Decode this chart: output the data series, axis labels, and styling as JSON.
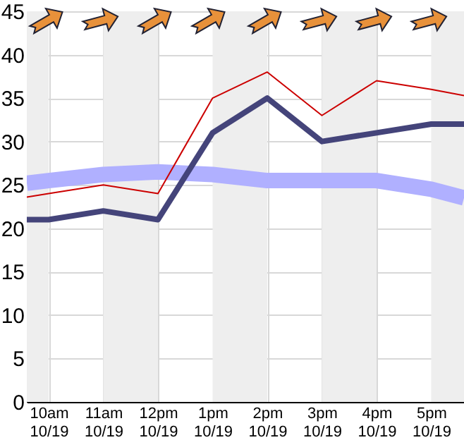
{
  "chart_data": {
    "type": "line",
    "xlim": [
      "--10-19T09:36",
      "--10-19T17:36"
    ],
    "ylim": [
      0,
      45
    ],
    "xticks": [
      {
        "value": "--10-19T10:00",
        "label": "10am\n10/19"
      },
      {
        "value": "--10-19T11:00",
        "label": "11am\n10/19"
      },
      {
        "value": "--10-19T12:00",
        "label": "12pm\n10/19"
      },
      {
        "value": "--10-19T13:00",
        "label": "1pm\n10/19"
      },
      {
        "value": "--10-19T14:00",
        "label": "2pm\n10/19"
      },
      {
        "value": "--10-19T15:00",
        "label": "3pm\n10/19"
      },
      {
        "value": "--10-19T16:00",
        "label": "4pm\n10/19"
      },
      {
        "value": "--10-19T17:00",
        "label": "5pm\n10/19"
      }
    ],
    "yticks": [
      0,
      5,
      10,
      15,
      20,
      25,
      30,
      35,
      40,
      45
    ],
    "x": [
      "--10-19T09:36",
      "--10-19T10:00",
      "--10-19T11:00",
      "--10-19T12:00",
      "--10-19T13:00",
      "--10-19T14:00",
      "--10-19T15:00",
      "--10-19T16:00",
      "--10-19T17:00",
      "--10-19T17:36"
    ],
    "series": [
      {
        "color": "#b0b0ff",
        "values": [
          25.2,
          25.5,
          26.2,
          26.5,
          26.2,
          25.5,
          25.5,
          25.5,
          24.5,
          23.5
        ]
      },
      {
        "color": "#cc0000",
        "values": [
          23.6,
          24,
          25,
          24,
          35,
          38,
          33,
          37,
          36,
          35.3
        ]
      },
      {
        "color": "#44447a",
        "values": [
          21,
          21,
          22,
          21,
          31,
          35,
          30,
          31,
          32,
          32
        ]
      }
    ],
    "bands": [
      {
        "axis": "x",
        "from": "--10-19T09:36",
        "to": "--10-19T10:00",
        "color": "#eeeeee"
      },
      {
        "axis": "x",
        "from": "--10-19T11:00",
        "to": "--10-19T12:00",
        "color": "#eeeeee"
      },
      {
        "axis": "x",
        "from": "--10-19T13:00",
        "to": "--10-19T14:00",
        "color": "#eeeeee"
      },
      {
        "axis": "x",
        "from": "--10-19T15:00",
        "to": "--10-19T16:00",
        "color": "#eeeeee"
      },
      {
        "axis": "x",
        "from": "--10-19T17:00",
        "to": "--10-19T17:36",
        "color": "#eeeeee"
      }
    ],
    "grid": true
  }
}
